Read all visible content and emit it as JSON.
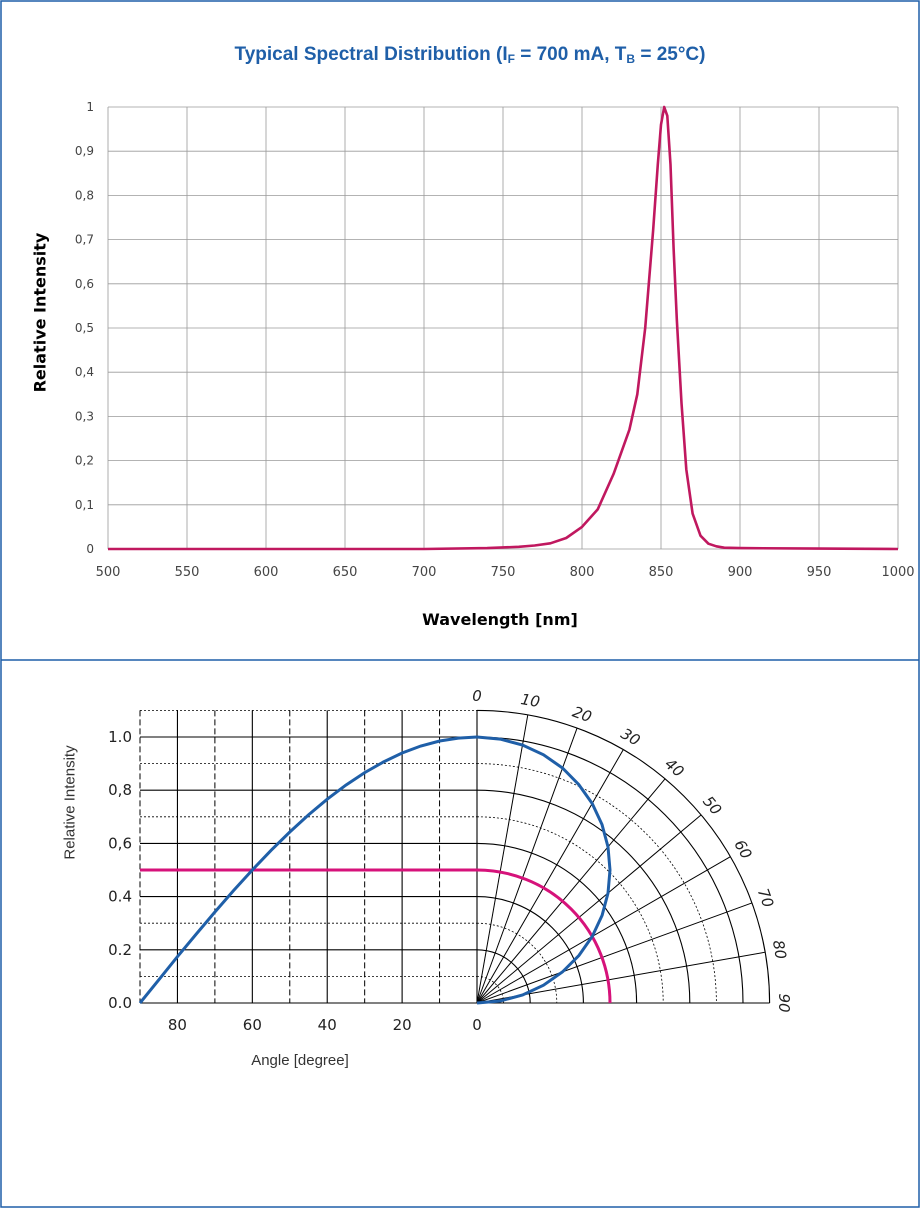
{
  "colors": {
    "border": "#1f5fa8",
    "title": "#1f5fa8",
    "spectrum": "#c0185f",
    "blue_curve": "#1f5fa8",
    "pink_curve": "#d6127a",
    "grid": "#9a9a9a"
  },
  "panel1": {
    "title_main": "Typical Spectral Distribution (I",
    "title_sub1": "F",
    "title_mid": " = 700 mA, T",
    "title_sub2": "B",
    "title_end": " = 25°C)"
  },
  "chart_data": [
    {
      "type": "line",
      "title": "Typical Spectral Distribution (IF = 700 mA, TB = 25°C)",
      "xlabel": "Wavelength [nm]",
      "ylabel": "Relative Intensity",
      "xlim": [
        500,
        1000
      ],
      "ylim": [
        0,
        1
      ],
      "grid": true,
      "x_ticks": [
        "500",
        "550",
        "600",
        "650",
        "700",
        "750",
        "800",
        "850",
        "900",
        "950",
        "1000"
      ],
      "y_ticks": [
        "0",
        "0,1",
        "0,2",
        "0,3",
        "0,4",
        "0,5",
        "0,6",
        "0,7",
        "0,8",
        "0,9",
        "1"
      ],
      "series": [
        {
          "x": [
            500,
            600,
            700,
            740,
            760,
            770,
            780,
            790,
            800,
            810,
            820,
            825,
            830,
            835,
            840,
            845,
            848,
            850,
            852,
            854,
            856,
            858,
            860,
            863,
            866,
            870,
            875,
            880,
            885,
            890,
            900,
            950,
            1000
          ],
          "y": [
            0,
            0,
            0,
            0.002,
            0.005,
            0.008,
            0.013,
            0.025,
            0.05,
            0.09,
            0.17,
            0.22,
            0.27,
            0.35,
            0.5,
            0.72,
            0.87,
            0.96,
            1.0,
            0.98,
            0.87,
            0.68,
            0.52,
            0.33,
            0.18,
            0.08,
            0.03,
            0.012,
            0.006,
            0.003,
            0.002,
            0.001,
            0
          ]
        }
      ]
    },
    {
      "type": "line",
      "xlabel": "Angle [degree]",
      "ylabel": "Relative Intensity",
      "xlim": [
        90,
        0
      ],
      "ylim": [
        0,
        1.0
      ],
      "grid": true,
      "x_ticks": [
        "80",
        "60",
        "40",
        "20",
        "0"
      ],
      "y_ticks": [
        "0.0",
        "0.2",
        "0.4",
        "0,6",
        "0,8",
        "1.0"
      ],
      "polar_angle_labels": [
        "0",
        "10",
        "20",
        "30",
        "40",
        "50",
        "60",
        "70",
        "80",
        "90"
      ],
      "series": [
        {
          "x": [
            0,
            5,
            10,
            15,
            20,
            25,
            30,
            35,
            40,
            45,
            50,
            55,
            60,
            65,
            70,
            75,
            80,
            85,
            90
          ],
          "y": [
            1.0,
            0.996,
            0.985,
            0.966,
            0.94,
            0.906,
            0.866,
            0.819,
            0.766,
            0.707,
            0.643,
            0.574,
            0.5,
            0.423,
            0.342,
            0.259,
            0.174,
            0.087,
            0.0
          ]
        },
        {
          "x": [
            0,
            10,
            20,
            30,
            40,
            50,
            60,
            70,
            80,
            90
          ],
          "y": [
            0.5,
            0.5,
            0.5,
            0.5,
            0.5,
            0.5,
            0.5,
            0.5,
            0.5,
            0.5
          ]
        }
      ]
    }
  ]
}
